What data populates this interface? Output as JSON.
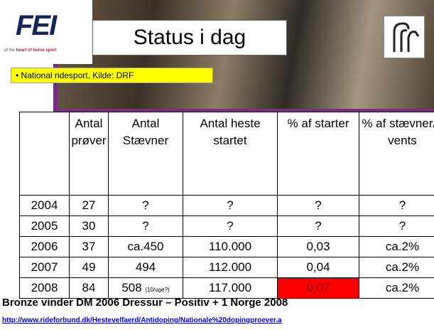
{
  "logo": {
    "text": "FEI",
    "tagline_pre": "at the",
    "tagline_bold": "heart of horse sport"
  },
  "header": {
    "title": "Status i dag"
  },
  "bullet": "National ridesport, Kilde: DRF",
  "table": {
    "header": [
      "",
      "Antal prøver",
      "Antal Stævner",
      "Antal heste startet",
      "% af starter",
      "% af stævner/events"
    ],
    "rows": [
      [
        "2004",
        "27",
        "?",
        "?",
        "?",
        "?"
      ],
      [
        "2005",
        "30",
        "?",
        "?",
        "?",
        "?"
      ],
      [
        "2006",
        "37",
        "ca.450",
        "110.000",
        "0,03",
        "ca.2%"
      ],
      [
        "2007",
        "49",
        "494",
        "112.000",
        "0,04",
        "ca.2%"
      ],
      [
        "2008",
        "84",
        "508",
        "117.000",
        "0,07",
        "ca.2%"
      ]
    ],
    "note": "(10/uge?)"
  },
  "footer": {
    "text": "Bronze vinder DM 2006 Dressur – Positiv + 1 Norge 2008",
    "link": "http://www.rideforbund.dk/Hestevelfaerd/Antidoping/Nationale%20dopingproever.a"
  }
}
